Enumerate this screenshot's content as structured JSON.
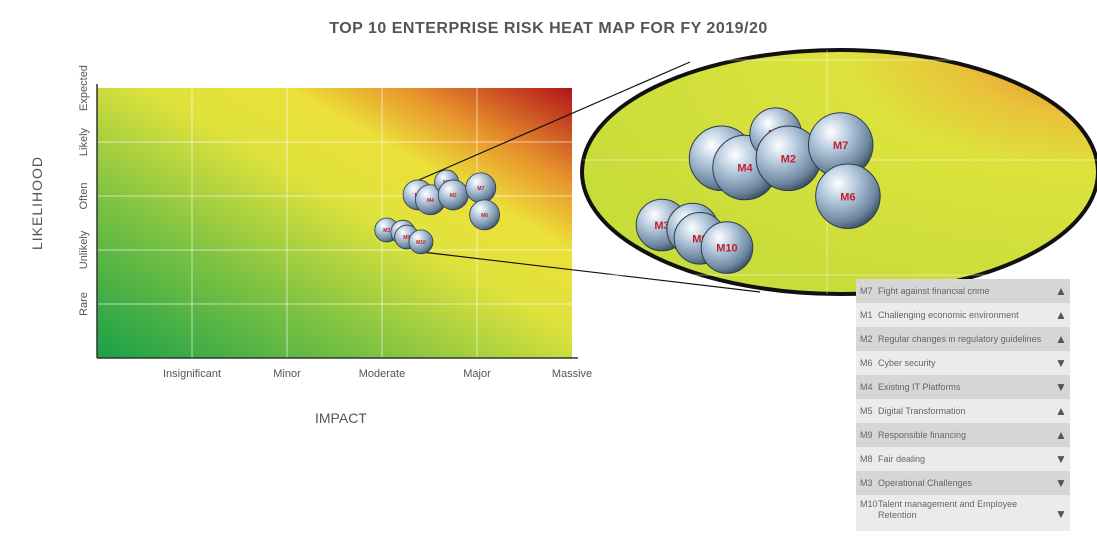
{
  "chart_data": {
    "type": "scatter",
    "title": "TOP 10 ENTERPRISE RISK HEAT MAP FOR FY 2019/20",
    "xlabel": "IMPACT",
    "ylabel": "LIKELIHOOD",
    "x_ticks": [
      "Insignificant",
      "Minor",
      "Moderate",
      "Major",
      "Massive"
    ],
    "y_ticks": [
      "Rare",
      "Unlikely",
      "Often",
      "Likely",
      "Expected"
    ],
    "xlim": [
      0,
      5
    ],
    "ylim": [
      0,
      5
    ],
    "grid": true,
    "background": "heat gradient green (low) to yellow to red (high, top-right)",
    "colors": {
      "low": "#1fa84a",
      "mid": "#e8e63a",
      "high": "#b8161b",
      "label": "#c0202a"
    },
    "points": [
      {
        "id": "M5",
        "x": 3.38,
        "y": 3.02
      },
      {
        "id": "M4",
        "x": 3.51,
        "y": 2.93
      },
      {
        "id": "M1",
        "x": 3.68,
        "y": 3.26
      },
      {
        "id": "M2",
        "x": 3.75,
        "y": 3.02
      },
      {
        "id": "M7",
        "x": 4.04,
        "y": 3.15
      },
      {
        "id": "M6",
        "x": 4.08,
        "y": 2.65
      },
      {
        "id": "M3",
        "x": 3.05,
        "y": 2.37
      },
      {
        "id": "M8",
        "x": 3.22,
        "y": 2.33
      },
      {
        "id": "M9",
        "x": 3.26,
        "y": 2.24
      },
      {
        "id": "M10",
        "x": 3.41,
        "y": 2.15
      }
    ]
  },
  "legend": [
    {
      "code": "M7",
      "text": "Fight against financial crime",
      "trend": "up"
    },
    {
      "code": "M1",
      "text": "Challenging economic environment",
      "trend": "up"
    },
    {
      "code": "M2",
      "text": "Regular changes in regulatory guidelines",
      "trend": "up"
    },
    {
      "code": "M6",
      "text": "Cyber security",
      "trend": "down"
    },
    {
      "code": "M4",
      "text": "Existing IT Platforms",
      "trend": "down"
    },
    {
      "code": "M5",
      "text": "Digital Transformation",
      "trend": "up"
    },
    {
      "code": "M9",
      "text": "Responsible financing",
      "trend": "up"
    },
    {
      "code": "M8",
      "text": "Fair dealing",
      "trend": "down"
    },
    {
      "code": "M3",
      "text": "Operational Challenges",
      "trend": "down"
    },
    {
      "code": "M10",
      "text": "Talent management and Employee Retention",
      "trend": "down"
    }
  ]
}
